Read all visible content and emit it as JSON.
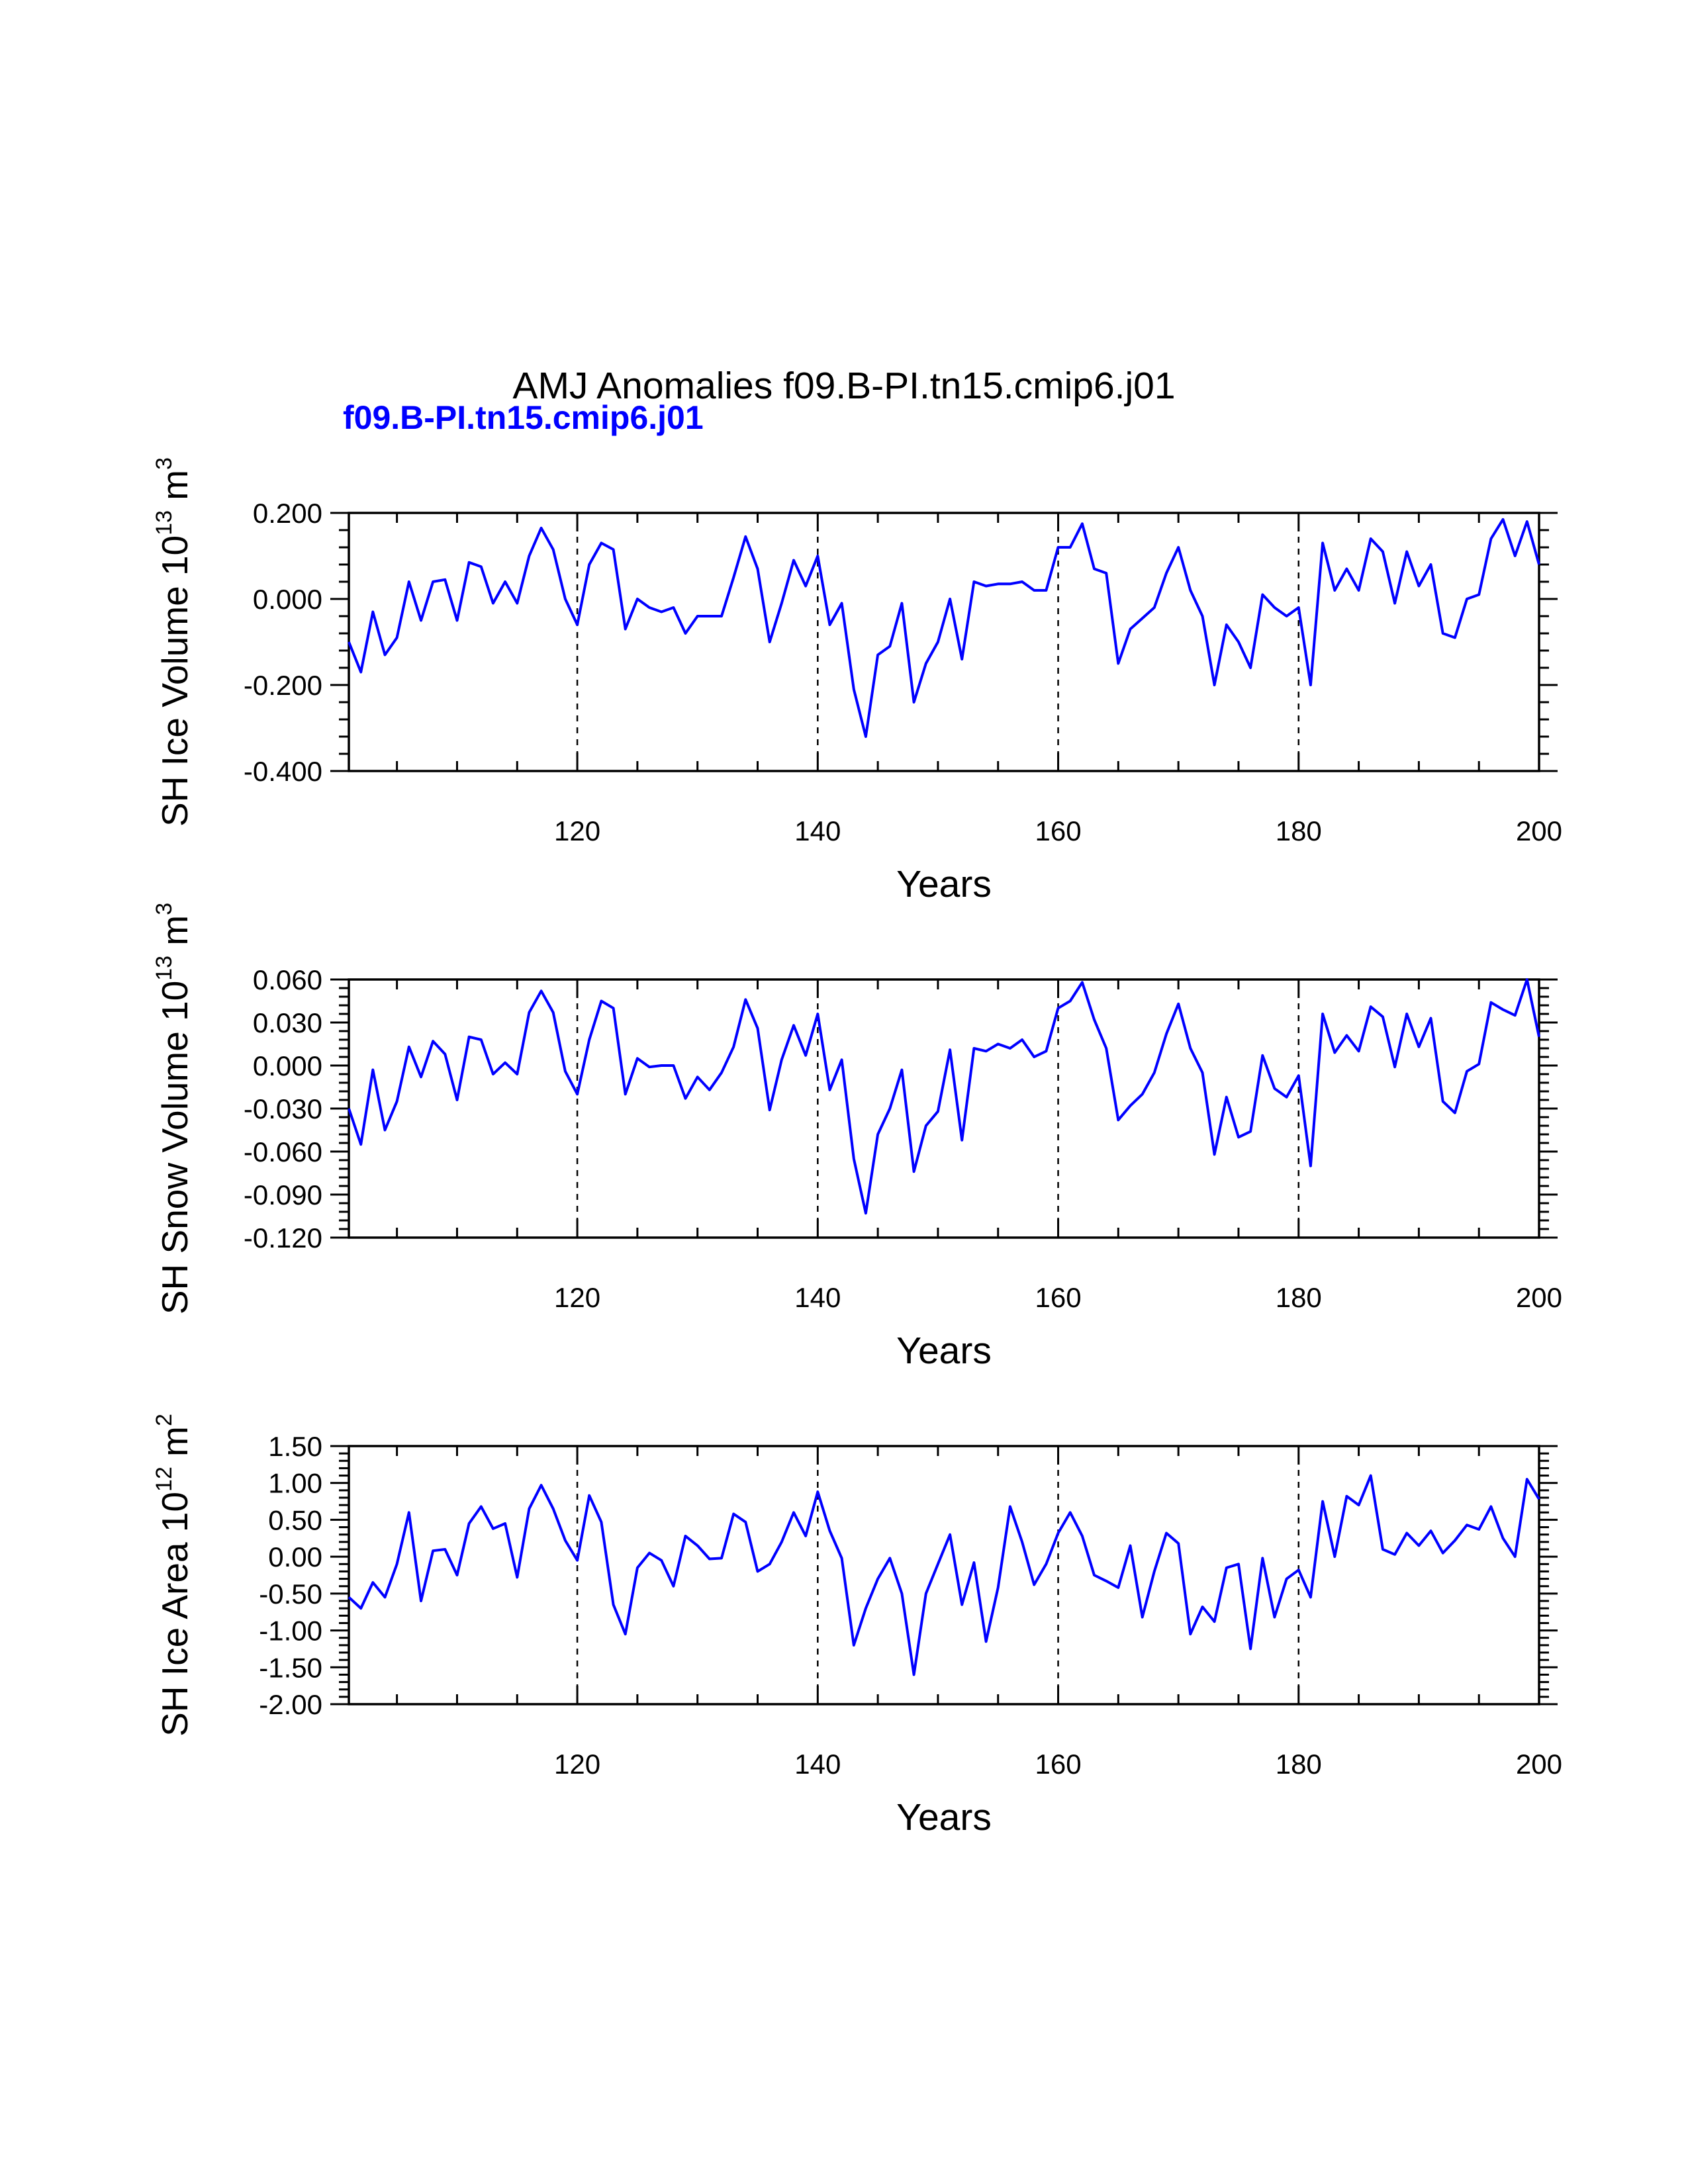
{
  "title": "AMJ Anomalies f09.B-PI.tn15.cmip6.j01",
  "subtitle": "f09.B-PI.tn15.cmip6.j01",
  "colors": {
    "line": "#0000ff",
    "subtitle": "#0000ff",
    "axis": "#000000",
    "grid": "#000000"
  },
  "chart_data": [
    {
      "type": "line",
      "title": "",
      "xlabel": "Years",
      "ylabel_main": "SH Ice Volume 10",
      "ylabel_sup": "13",
      "ylabel_unit": " m",
      "ylabel_unit_sup": "3",
      "xlim": [
        101,
        200
      ],
      "ylim": [
        -0.4,
        0.2
      ],
      "xticks": [
        120,
        140,
        160,
        180,
        200
      ],
      "xtick_labels": [
        "120",
        "140",
        "160",
        "180",
        "200"
      ],
      "yticks": [
        0.2,
        0.0,
        -0.2,
        -0.4
      ],
      "ytick_labels": [
        "0.200",
        "0.000",
        "-0.200",
        "-0.400"
      ],
      "vgrid": [
        120,
        140,
        160,
        180
      ],
      "grid": "dashed vertical at x-ticks",
      "x_start": 101,
      "values": [
        -0.1,
        -0.17,
        -0.03,
        -0.13,
        -0.09,
        0.04,
        -0.05,
        0.04,
        0.045,
        -0.05,
        0.085,
        0.075,
        -0.01,
        0.04,
        -0.01,
        0.1,
        0.165,
        0.115,
        0.0,
        -0.06,
        0.08,
        0.13,
        0.115,
        -0.07,
        0.0,
        -0.02,
        -0.03,
        -0.02,
        -0.08,
        -0.04,
        -0.04,
        -0.04,
        0.05,
        0.145,
        0.07,
        -0.1,
        -0.01,
        0.09,
        0.03,
        0.1,
        -0.06,
        -0.01,
        -0.21,
        -0.32,
        -0.13,
        -0.11,
        -0.01,
        -0.24,
        -0.15,
        -0.1,
        0.0,
        -0.14,
        0.04,
        0.03,
        0.035,
        0.035,
        0.04,
        0.02,
        0.02,
        0.12,
        0.12,
        0.175,
        0.07,
        0.06,
        -0.15,
        -0.07,
        -0.045,
        -0.02,
        0.06,
        0.12,
        0.02,
        -0.04,
        -0.2,
        -0.06,
        -0.1,
        -0.16,
        0.01,
        -0.02,
        -0.04,
        -0.02,
        -0.2,
        0.13,
        0.02,
        0.07,
        0.02,
        0.14,
        0.11,
        -0.01,
        0.11,
        0.03,
        0.08,
        -0.08,
        -0.09,
        0.0,
        0.01,
        0.14,
        0.185,
        0.1,
        0.18,
        0.08
      ]
    },
    {
      "type": "line",
      "title": "",
      "xlabel": "Years",
      "ylabel_main": "SH Snow Volume 10",
      "ylabel_sup": "13",
      "ylabel_unit": " m",
      "ylabel_unit_sup": "3",
      "xlim": [
        101,
        200
      ],
      "ylim": [
        -0.12,
        0.06
      ],
      "xticks": [
        120,
        140,
        160,
        180,
        200
      ],
      "xtick_labels": [
        "120",
        "140",
        "160",
        "180",
        "200"
      ],
      "yticks": [
        0.06,
        0.03,
        0.0,
        -0.03,
        -0.06,
        -0.09,
        -0.12
      ],
      "ytick_labels": [
        "0.060",
        "0.030",
        "0.000",
        "-0.030",
        "-0.060",
        "-0.090",
        "-0.120"
      ],
      "vgrid": [
        120,
        140,
        160,
        180
      ],
      "grid": "dashed vertical at x-ticks",
      "x_start": 101,
      "values": [
        -0.03,
        -0.055,
        -0.003,
        -0.045,
        -0.025,
        0.013,
        -0.008,
        0.017,
        0.008,
        -0.024,
        0.02,
        0.018,
        -0.006,
        0.002,
        -0.006,
        0.037,
        0.052,
        0.037,
        -0.004,
        -0.02,
        0.018,
        0.045,
        0.04,
        -0.02,
        0.005,
        -0.001,
        0.0,
        0.0,
        -0.023,
        -0.008,
        -0.017,
        -0.005,
        0.013,
        0.046,
        0.026,
        -0.031,
        0.004,
        0.028,
        0.007,
        0.036,
        -0.017,
        0.004,
        -0.065,
        -0.103,
        -0.048,
        -0.03,
        -0.003,
        -0.074,
        -0.042,
        -0.032,
        0.011,
        -0.052,
        0.012,
        0.01,
        0.015,
        0.012,
        0.018,
        0.006,
        0.01,
        0.04,
        0.045,
        0.058,
        0.032,
        0.012,
        -0.038,
        -0.028,
        -0.02,
        -0.005,
        0.022,
        0.043,
        0.012,
        -0.005,
        -0.062,
        -0.022,
        -0.05,
        -0.046,
        0.007,
        -0.016,
        -0.022,
        -0.007,
        -0.07,
        0.036,
        0.009,
        0.021,
        0.01,
        0.041,
        0.034,
        -0.001,
        0.036,
        0.013,
        0.033,
        -0.025,
        -0.033,
        -0.004,
        0.001,
        0.044,
        0.039,
        0.035,
        0.06,
        0.02
      ]
    },
    {
      "type": "line",
      "title": "",
      "xlabel": "Years",
      "ylabel_main": "SH Ice Area 10",
      "ylabel_sup": "12",
      "ylabel_unit": " m",
      "ylabel_unit_sup": "2",
      "xlim": [
        101,
        200
      ],
      "ylim": [
        -2.0,
        1.5
      ],
      "xticks": [
        120,
        140,
        160,
        180,
        200
      ],
      "xtick_labels": [
        "120",
        "140",
        "160",
        "180",
        "200"
      ],
      "yticks": [
        1.5,
        1.0,
        0.5,
        0.0,
        -0.5,
        -1.0,
        -1.5,
        -2.0
      ],
      "ytick_labels": [
        "1.50",
        "1.00",
        "0.50",
        "0.00",
        "-0.50",
        "-1.00",
        "-1.50",
        "-2.00"
      ],
      "vgrid": [
        120,
        140,
        160,
        180
      ],
      "grid": "dashed vertical at x-ticks",
      "x_start": 101,
      "values": [
        -0.55,
        -0.7,
        -0.35,
        -0.55,
        -0.1,
        0.6,
        -0.6,
        0.08,
        0.1,
        -0.25,
        0.45,
        0.68,
        0.38,
        0.45,
        -0.28,
        0.65,
        0.97,
        0.65,
        0.22,
        -0.05,
        0.83,
        0.47,
        -0.65,
        -1.05,
        -0.15,
        0.05,
        -0.05,
        -0.4,
        0.28,
        0.15,
        -0.03,
        -0.02,
        0.58,
        0.47,
        -0.2,
        -0.1,
        0.2,
        0.6,
        0.28,
        0.88,
        0.35,
        -0.02,
        -1.2,
        -0.7,
        -0.3,
        -0.02,
        -0.5,
        -1.6,
        -0.5,
        -0.1,
        0.3,
        -0.65,
        -0.08,
        -1.15,
        -0.42,
        0.68,
        0.2,
        -0.38,
        -0.1,
        0.32,
        0.6,
        0.28,
        -0.25,
        -0.33,
        -0.42,
        0.15,
        -0.82,
        -0.2,
        0.32,
        0.18,
        -1.05,
        -0.68,
        -0.88,
        -0.15,
        -0.1,
        -1.25,
        -0.02,
        -0.82,
        -0.3,
        -0.18,
        -0.55,
        0.75,
        0.0,
        0.82,
        0.7,
        1.1,
        0.1,
        0.03,
        0.32,
        0.15,
        0.35,
        0.05,
        0.22,
        0.43,
        0.37,
        0.68,
        0.25,
        0.0,
        1.05,
        0.78
      ]
    }
  ]
}
